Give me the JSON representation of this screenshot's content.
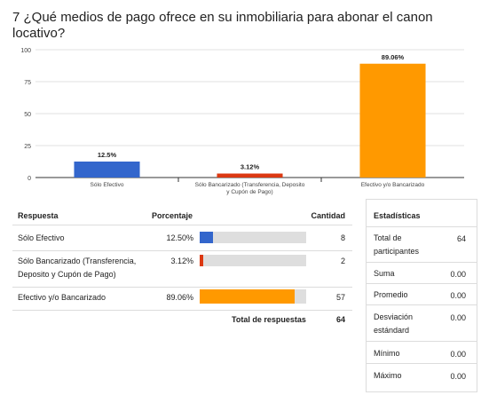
{
  "question": "7 ¿Qué medios de pago ofrece en su inmobiliaria para abonar el canon locativo?",
  "chart_data": {
    "type": "bar",
    "categories": [
      "Sólo Efectivo",
      "Sólo Bancarizado (Transferencia, Deposito y Cupón de Pago)",
      "Efectivo y/o Bancarizado"
    ],
    "category_label_lines": [
      [
        "Sólo Efectivo"
      ],
      [
        "Sólo Bancarizado (Transferencia, Deposito",
        "y Cupón de Pago)"
      ],
      [
        "Efectivo y/o Bancarizado"
      ]
    ],
    "values": [
      12.5,
      3.12,
      89.06
    ],
    "data_labels": [
      "12.5%",
      "3.12%",
      "89.06%"
    ],
    "colors": [
      "#3366cc",
      "#dc3912",
      "#ff9900"
    ],
    "ylim": [
      0,
      100
    ],
    "yticks": [
      0,
      25,
      50,
      75,
      100
    ],
    "grid": true
  },
  "table": {
    "headers": {
      "respuesta": "Respuesta",
      "porcentaje": "Porcentaje",
      "cantidad": "Cantidad"
    },
    "rows": [
      {
        "label_lines": [
          "Sólo Efectivo"
        ],
        "percent_text": "12.50%",
        "value": 12.5,
        "count": "8",
        "color": "#3366cc"
      },
      {
        "label_lines": [
          "Sólo Bancarizado (Transferencia,",
          "Deposito y Cupón de Pago)"
        ],
        "percent_text": "3.12%",
        "value": 3.12,
        "count": "2",
        "color": "#dc3912"
      },
      {
        "label_lines": [
          "Efectivo y/o Bancarizado"
        ],
        "percent_text": "89.06%",
        "value": 89.06,
        "count": "57",
        "color": "#ff9900"
      }
    ],
    "total_label": "Total de respuestas",
    "total_value": "64"
  },
  "stats": {
    "title": "Estadísticas",
    "rows": [
      {
        "label_lines": [
          "Total de",
          "participantes"
        ],
        "value": "64"
      },
      {
        "label_lines": [
          "Suma"
        ],
        "value": "0.00"
      },
      {
        "label_lines": [
          "Promedio"
        ],
        "value": "0.00"
      },
      {
        "label_lines": [
          "Desviación",
          "estándard"
        ],
        "value": "0.00"
      },
      {
        "label_lines": [
          "Mínimo"
        ],
        "value": "0.00"
      },
      {
        "label_lines": [
          "Máximo"
        ],
        "value": "0.00"
      }
    ]
  }
}
